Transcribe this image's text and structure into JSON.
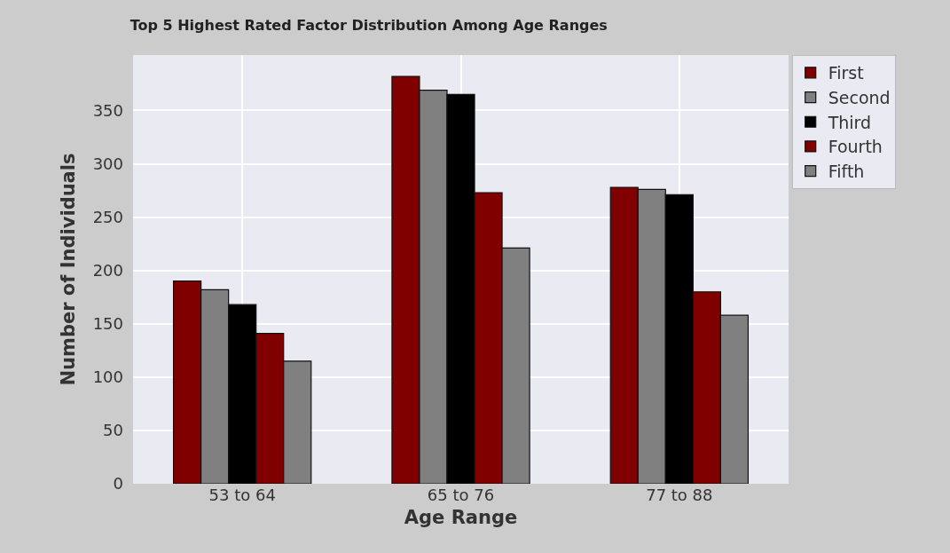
{
  "chart_data": {
    "type": "bar",
    "title": "Top 5 Highest Rated Factor Distribution Among Age Ranges",
    "xlabel": "Age Range",
    "ylabel": "Number of Individuals",
    "categories": [
      "53 to 64",
      "65 to 76",
      "77 to 88"
    ],
    "series": [
      {
        "name": "First",
        "color": "#800000",
        "values": [
          190,
          382,
          278
        ]
      },
      {
        "name": "Second",
        "color": "#808080",
        "values": [
          182,
          369,
          276
        ]
      },
      {
        "name": "Third",
        "color": "#000000",
        "values": [
          168,
          365,
          271
        ]
      },
      {
        "name": "Fourth",
        "color": "#800000",
        "values": [
          141,
          273,
          180
        ]
      },
      {
        "name": "Fifth",
        "color": "#808080",
        "values": [
          115,
          221,
          158
        ]
      }
    ],
    "ylim": [
      0,
      402
    ],
    "yticks": [
      0,
      50,
      100,
      150,
      200,
      250,
      300,
      350
    ],
    "grid": true,
    "legend": "top right"
  }
}
